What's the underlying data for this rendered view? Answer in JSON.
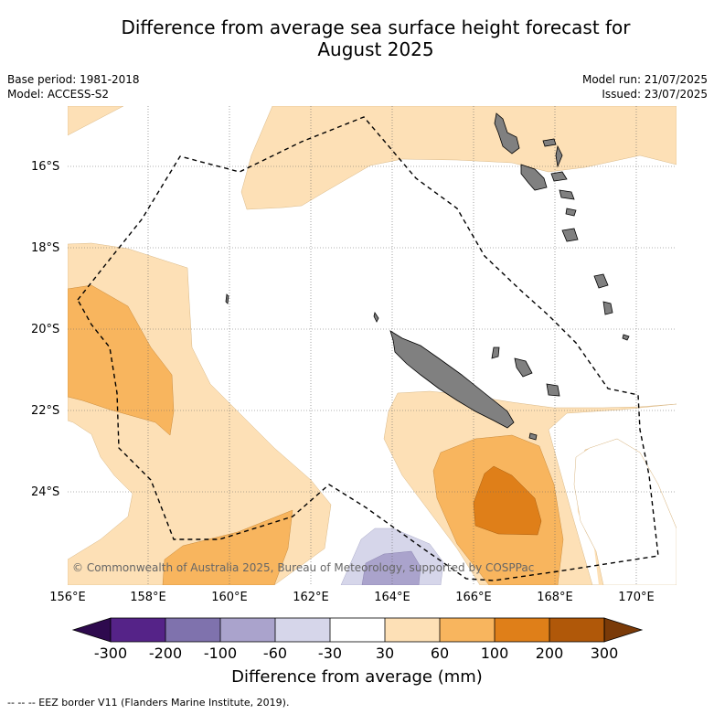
{
  "title_line1": "Difference from average sea surface height forecast for",
  "title_line2": "August 2025",
  "meta_left": {
    "base_period": "Base period: 1981-2018",
    "model": "Model: ACCESS-S2"
  },
  "meta_right": {
    "model_run": "Model run: 21/07/2025",
    "issued": "Issued: 23/07/2025"
  },
  "lat_labels": [
    "16°S",
    "18°S",
    "20°S",
    "22°S",
    "24°S"
  ],
  "lon_labels": [
    "156°E",
    "158°E",
    "160°E",
    "162°E",
    "164°E",
    "166°E",
    "168°E",
    "170°E"
  ],
  "copyright": "© Commonwealth of Australia 2025, Bureau of Meteorology, supported by COSPPac",
  "colorbar": {
    "ticks": [
      "-300",
      "-200",
      "-100",
      "-60",
      "-30",
      "30",
      "60",
      "100",
      "200",
      "300"
    ],
    "label": "Difference from average (mm)",
    "colors": [
      "#2e0a4e",
      "#552388",
      "#7f72ad",
      "#aaa3cc",
      "#d6d6ea",
      "#ffffff",
      "#fde0b6",
      "#f8b55e",
      "#df7f19",
      "#b05809",
      "#7a3a08"
    ]
  },
  "footer": "-- -- -- EEZ border V11 (Flanders Marine Institute, 2019).",
  "map_colors": {
    "land": "#808080",
    "c30": "#fde0b6",
    "c60": "#f8b55e",
    "c100": "#df7f19",
    "neg30": "#d6d6ea",
    "neg60": "#aaa3cc"
  }
}
